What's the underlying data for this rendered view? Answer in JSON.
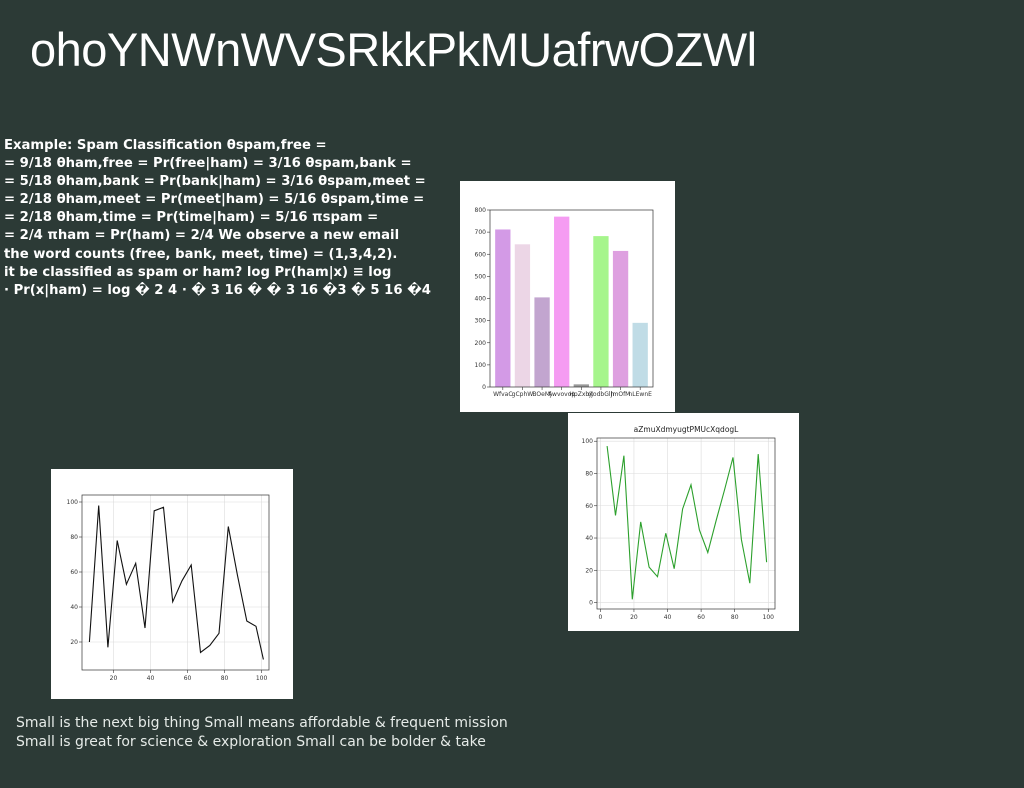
{
  "slide": {
    "title": "ohoYNWnWVSRkkPkMUafrwOZWl",
    "math_lines": [
      "Example: Spam Classification θspam,free =",
      "= 9/18 θham,free = Pr(free|ham) = 3/16 θspam,bank =",
      "= 5/18 θham,bank = Pr(bank|ham) = 3/16 θspam,meet =",
      "= 2/18 θham,meet = Pr(meet|ham) = 5/16 θspam,time =",
      "= 2/18 θham,time = Pr(time|ham) = 5/16 πspam =",
      "= 2/4 πham = Pr(ham) = 2/4 We observe a new email",
      "the word counts (free, bank, meet, time) = (1,3,4,2).",
      "it be classified as spam or ham? log Pr(ham|x) ≡ log",
      "· Pr(x|ham) = log � 2 4 · � 3 16 � � 3 16 �3 � 5 16 �4"
    ],
    "tagline_lines": [
      "Small is the next big thing Small means affordable & frequent mission",
      "Small is great for science & exploration Small can be bolder & take"
    ]
  },
  "chart_data": [
    {
      "type": "bar",
      "categories": [
        "WfvaC",
        "gCphW",
        "BOeMj",
        "Awvovop",
        "HpZxbjt",
        "ojodbGlh",
        "JmOfM",
        "nLEwnE"
      ],
      "values": [
        712,
        645,
        405,
        770,
        12,
        682,
        615,
        290
      ],
      "colors": [
        "#d39ae6",
        "#ecd6e6",
        "#c2a5cf",
        "#f59cf2",
        "#999999",
        "#a6f58c",
        "#dea0e0",
        "#c0dce6"
      ],
      "ylim": [
        0,
        800
      ],
      "yticks": [
        0,
        100,
        200,
        300,
        400,
        500,
        600,
        700,
        800
      ],
      "title": "",
      "xlabel": "",
      "ylabel": ""
    },
    {
      "type": "line",
      "title": "aZmuXdmyugtPMUcXqdogL",
      "color": "#2ca02c",
      "x": [
        4,
        9,
        14,
        19,
        24,
        29,
        34,
        39,
        44,
        49,
        54,
        59,
        64,
        69,
        74,
        79,
        84,
        89,
        94,
        99
      ],
      "y": [
        97,
        54,
        91,
        2,
        50,
        22,
        16,
        43,
        21,
        58,
        73,
        45,
        31,
        51,
        70,
        90,
        39,
        12,
        92,
        25
      ],
      "xlim": [
        -2,
        104
      ],
      "ylim": [
        -4,
        102
      ],
      "xticks": [
        0,
        20,
        40,
        60,
        80,
        100
      ],
      "yticks": [
        0,
        20,
        40,
        60,
        80,
        100
      ]
    },
    {
      "type": "line",
      "title": "",
      "color": "#111111",
      "x": [
        7,
        12,
        17,
        22,
        27,
        32,
        37,
        42,
        47,
        52,
        57,
        62,
        67,
        72,
        77,
        82,
        87,
        92,
        97,
        101
      ],
      "y": [
        20,
        98,
        17,
        78,
        53,
        65,
        28,
        95,
        97,
        43,
        55,
        64,
        14,
        18,
        25,
        86,
        58,
        32,
        29,
        10
      ],
      "xlim": [
        3,
        104
      ],
      "ylim": [
        4,
        104
      ],
      "xticks": [
        20,
        40,
        60,
        80,
        100
      ],
      "yticks": [
        20,
        40,
        60,
        80,
        100
      ]
    }
  ]
}
